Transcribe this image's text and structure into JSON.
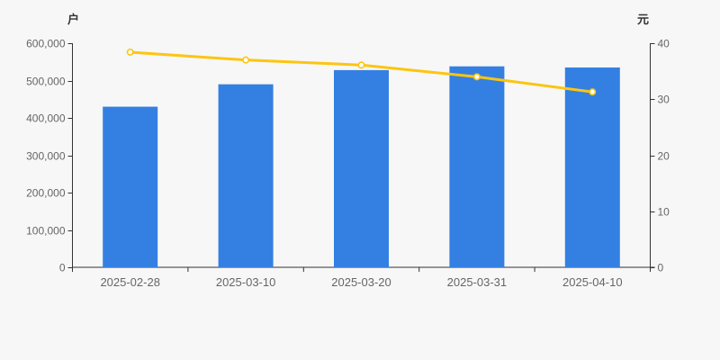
{
  "chart_data": {
    "type": "combo",
    "title": "",
    "categories": [
      "2025-02-28",
      "2025-03-10",
      "2025-03-20",
      "2025-03-31",
      "2025-04-10"
    ],
    "series": [
      {
        "type": "bar",
        "axis": "left",
        "values": [
          430000,
          490000,
          528000,
          538000,
          535000
        ],
        "color": "#3480e2"
      },
      {
        "type": "line",
        "axis": "right",
        "values": [
          38.4,
          37.0,
          36.1,
          34.0,
          31.3
        ],
        "color": "#fcc510",
        "marker": "hollow-circle",
        "marker_fill": "#ffffff"
      }
    ],
    "left_axis": {
      "unit": "户",
      "min": 0,
      "max": 600000,
      "tick_step": 100000
    },
    "right_axis": {
      "unit": "元",
      "min": 0,
      "max": 40,
      "tick_step": 10
    },
    "grid": false,
    "legend": false,
    "colors": {
      "background": "#f7f7f7",
      "axis_line": "#333333",
      "tick_label": "#666666",
      "category_label": "#666666"
    }
  }
}
